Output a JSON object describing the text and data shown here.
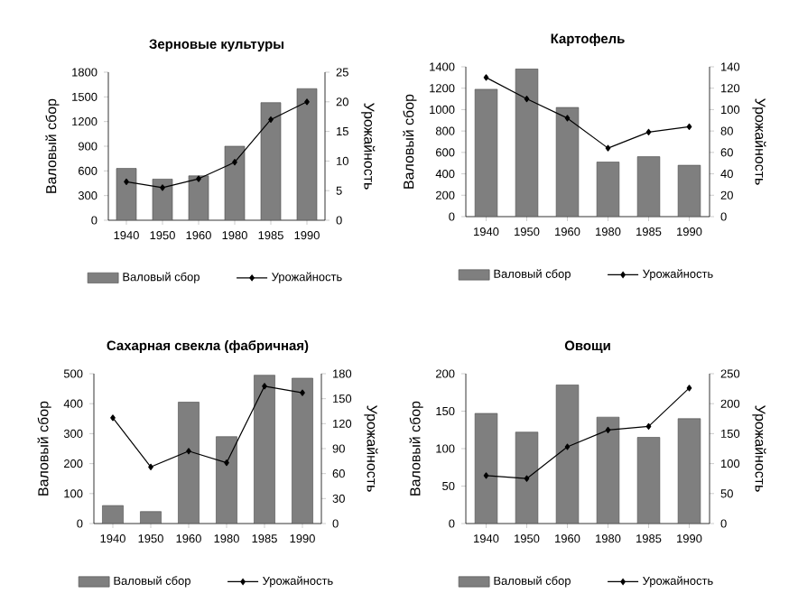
{
  "chart_data": [
    {
      "type": "bar",
      "title": "Зерновые культуры",
      "ylabel": "Валовый сбор",
      "y2label": "Урожайность",
      "categories": [
        "1940",
        "1950",
        "1960",
        "1980",
        "1985",
        "1990"
      ],
      "series": [
        {
          "name": "Валовый сбор",
          "color": "#7f7f7f",
          "values": [
            630,
            500,
            540,
            900,
            1430,
            1600
          ]
        },
        {
          "name": "Урожайность",
          "type": "line",
          "axis": "y2",
          "color": "#000000",
          "values": [
            6.5,
            5.5,
            7,
            9.8,
            17,
            20
          ]
        }
      ],
      "ylim": [
        0,
        1800
      ],
      "yticks": [
        0,
        300,
        600,
        900,
        1200,
        1500,
        1800
      ],
      "y2lim": [
        0,
        25
      ],
      "y2ticks": [
        0,
        5,
        10,
        15,
        20,
        25
      ],
      "legend": "bottom",
      "marker": "diamond"
    },
    {
      "type": "bar",
      "title": "Картофель",
      "ylabel": "Валовый сбор",
      "y2label": "Урожайность",
      "categories": [
        "1940",
        "1950",
        "1960",
        "1980",
        "1985",
        "1990"
      ],
      "series": [
        {
          "name": "Валовый сбор",
          "color": "#7f7f7f",
          "values": [
            1190,
            1380,
            1020,
            510,
            560,
            480
          ]
        },
        {
          "name": "Урожайность",
          "type": "line",
          "axis": "y2",
          "color": "#000000",
          "values": [
            130,
            110,
            92,
            64,
            79,
            84
          ]
        }
      ],
      "ylim": [
        0,
        1400
      ],
      "yticks": [
        0,
        200,
        400,
        600,
        800,
        1000,
        1200,
        1400
      ],
      "y2lim": [
        0,
        140
      ],
      "y2ticks": [
        0,
        20,
        40,
        60,
        80,
        100,
        120,
        140
      ],
      "legend": "bottom",
      "marker": "diamond"
    },
    {
      "type": "bar",
      "title": "Сахарная свекла (фабричная)",
      "ylabel": "Валовый сбор",
      "y2label": "Урожайность",
      "categories": [
        "1940",
        "1950",
        "1960",
        "1980",
        "1985",
        "1990"
      ],
      "series": [
        {
          "name": "Валовый сбор",
          "color": "#7f7f7f",
          "values": [
            60,
            40,
            405,
            290,
            495,
            485
          ]
        },
        {
          "name": "Урожайность",
          "type": "line",
          "axis": "y2",
          "color": "#000000",
          "values": [
            127,
            68,
            87,
            73,
            165,
            157
          ]
        }
      ],
      "ylim": [
        0,
        500
      ],
      "yticks": [
        0,
        100,
        200,
        300,
        400,
        500
      ],
      "y2lim": [
        0,
        180
      ],
      "y2ticks": [
        0,
        30,
        60,
        90,
        120,
        150,
        180
      ],
      "legend": "bottom",
      "marker": "diamond"
    },
    {
      "type": "bar",
      "title": "Овощи",
      "ylabel": "Валовый сбор",
      "y2label": "Урожайность",
      "categories": [
        "1940",
        "1950",
        "1960",
        "1980",
        "1985",
        "1990"
      ],
      "series": [
        {
          "name": "Валовый сбор",
          "color": "#7f7f7f",
          "values": [
            147,
            122,
            185,
            142,
            115,
            140
          ]
        },
        {
          "name": "Урожайность",
          "type": "line",
          "axis": "y2",
          "color": "#000000",
          "values": [
            80,
            75,
            128,
            156,
            162,
            226
          ]
        }
      ],
      "ylim": [
        0,
        200
      ],
      "yticks": [
        0,
        50,
        100,
        150,
        200
      ],
      "y2lim": [
        0,
        250
      ],
      "y2ticks": [
        0,
        50,
        100,
        150,
        200,
        250
      ],
      "legend": "bottom",
      "marker": "diamond"
    }
  ]
}
